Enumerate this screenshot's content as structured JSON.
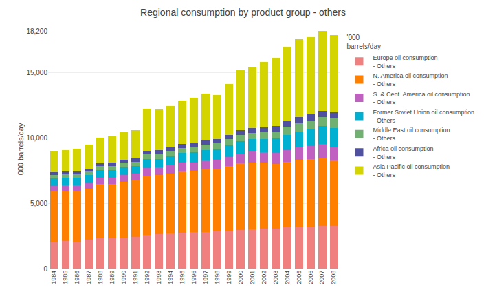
{
  "chart_data": {
    "type": "bar",
    "stacked": true,
    "title": "Regional consumption by product group - others",
    "ylabel": "'000 barrels/day",
    "legend_title": "'000\nbarrels/day",
    "legend": "right",
    "grid": true,
    "categories": [
      "1984",
      "1985",
      "1986",
      "1987",
      "1988",
      "1989",
      "1990",
      "1991",
      "1992",
      "1993",
      "1994",
      "1995",
      "1996",
      "1997",
      "1998",
      "1999",
      "2000",
      "2001",
      "2002",
      "2003",
      "2004",
      "2005",
      "2006",
      "2007",
      "2008"
    ],
    "series": [
      {
        "name": "Europe oil consumption\n- Others",
        "color": "#f08080",
        "values": [
          2050,
          2100,
          2050,
          2200,
          2300,
          2300,
          2350,
          2450,
          2600,
          2650,
          2700,
          2750,
          2800,
          2800,
          2850,
          2900,
          2950,
          3000,
          3050,
          3050,
          3150,
          3200,
          3200,
          3250,
          3250
        ]
      },
      {
        "name": "N. America oil consumption\n- Others",
        "color": "#ff8000",
        "values": [
          3850,
          3850,
          3900,
          3900,
          4200,
          4200,
          4300,
          4300,
          4500,
          4500,
          4600,
          4700,
          4700,
          4850,
          4800,
          4950,
          5100,
          5150,
          5050,
          4950,
          5050,
          5150,
          5200,
          5250,
          5050
        ]
      },
      {
        "name": "S. & Cent. America oil consumption\n- Others",
        "color": "#c060c0",
        "values": [
          450,
          450,
          450,
          450,
          450,
          450,
          500,
          550,
          600,
          600,
          600,
          650,
          650,
          650,
          700,
          700,
          750,
          800,
          800,
          850,
          900,
          950,
          1000,
          1050,
          1050
        ]
      },
      {
        "name": "Former Soviet Union oil consumption\n- Others",
        "color": "#00b0d0",
        "values": [
          550,
          550,
          550,
          600,
          600,
          600,
          600,
          550,
          700,
          650,
          700,
          750,
          750,
          800,
          800,
          900,
          950,
          950,
          1000,
          1100,
          1150,
          1200,
          1250,
          1350,
          1400
        ]
      },
      {
        "name": "Middle East oil consumption\n- Others",
        "color": "#70b070",
        "values": [
          280,
          280,
          280,
          300,
          320,
          330,
          350,
          350,
          370,
          380,
          390,
          400,
          410,
          420,
          440,
          460,
          480,
          510,
          530,
          560,
          600,
          650,
          700,
          720,
          740
        ]
      },
      {
        "name": "Africa oil consumption\n- Others",
        "color": "#5050a0",
        "values": [
          220,
          220,
          220,
          220,
          220,
          230,
          230,
          230,
          260,
          270,
          280,
          290,
          310,
          320,
          330,
          340,
          360,
          370,
          380,
          400,
          420,
          440,
          460,
          480,
          490
        ]
      },
      {
        "name": "Asia Pacific oil consumption\n- Others",
        "color": "#d4d400",
        "values": [
          1550,
          1650,
          1750,
          1850,
          1950,
          2050,
          2150,
          2150,
          3200,
          3150,
          3200,
          3350,
          3450,
          3550,
          3400,
          3900,
          4650,
          4650,
          5000,
          5250,
          5700,
          6000,
          5900,
          6100,
          5900
        ]
      }
    ],
    "ylim": [
      0,
      18200
    ],
    "yticks": [
      0,
      {
        "value": 5000,
        "label": "5,000"
      },
      {
        "value": 10000,
        "label": "10,000"
      },
      {
        "value": 15000,
        "label": "15,000"
      },
      {
        "value": 18200,
        "label": "18,200"
      }
    ]
  }
}
